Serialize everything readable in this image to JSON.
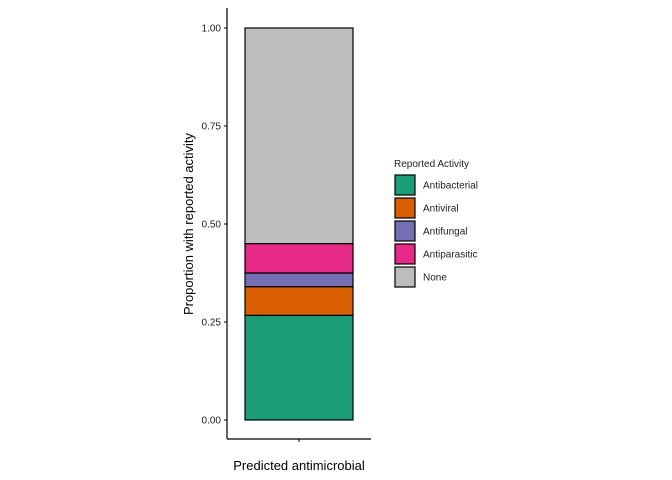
{
  "chart_data": {
    "type": "bar",
    "stacked": true,
    "categories": [
      "Predicted antimicrobial"
    ],
    "series": [
      {
        "name": "Antibacterial",
        "values": [
          0.267
        ],
        "color": "#1b9e77"
      },
      {
        "name": "Antiviral",
        "values": [
          0.073
        ],
        "color": "#d95f02"
      },
      {
        "name": "Antifungal",
        "values": [
          0.035
        ],
        "color": "#7570b3"
      },
      {
        "name": "Antiparasitic",
        "values": [
          0.075
        ],
        "color": "#e7298a"
      },
      {
        "name": "None",
        "values": [
          0.55
        ],
        "color": "#bdbdbd"
      }
    ],
    "title": "",
    "xlabel": "Predicted antimicrobial",
    "ylabel": "Proportion with reported activity",
    "ylim": [
      0,
      1
    ],
    "yticks": [
      "0.00",
      "0.25",
      "0.50",
      "0.75",
      "1.00"
    ],
    "legend": {
      "title": "Reported Activity",
      "position": "right"
    },
    "grid": false
  }
}
